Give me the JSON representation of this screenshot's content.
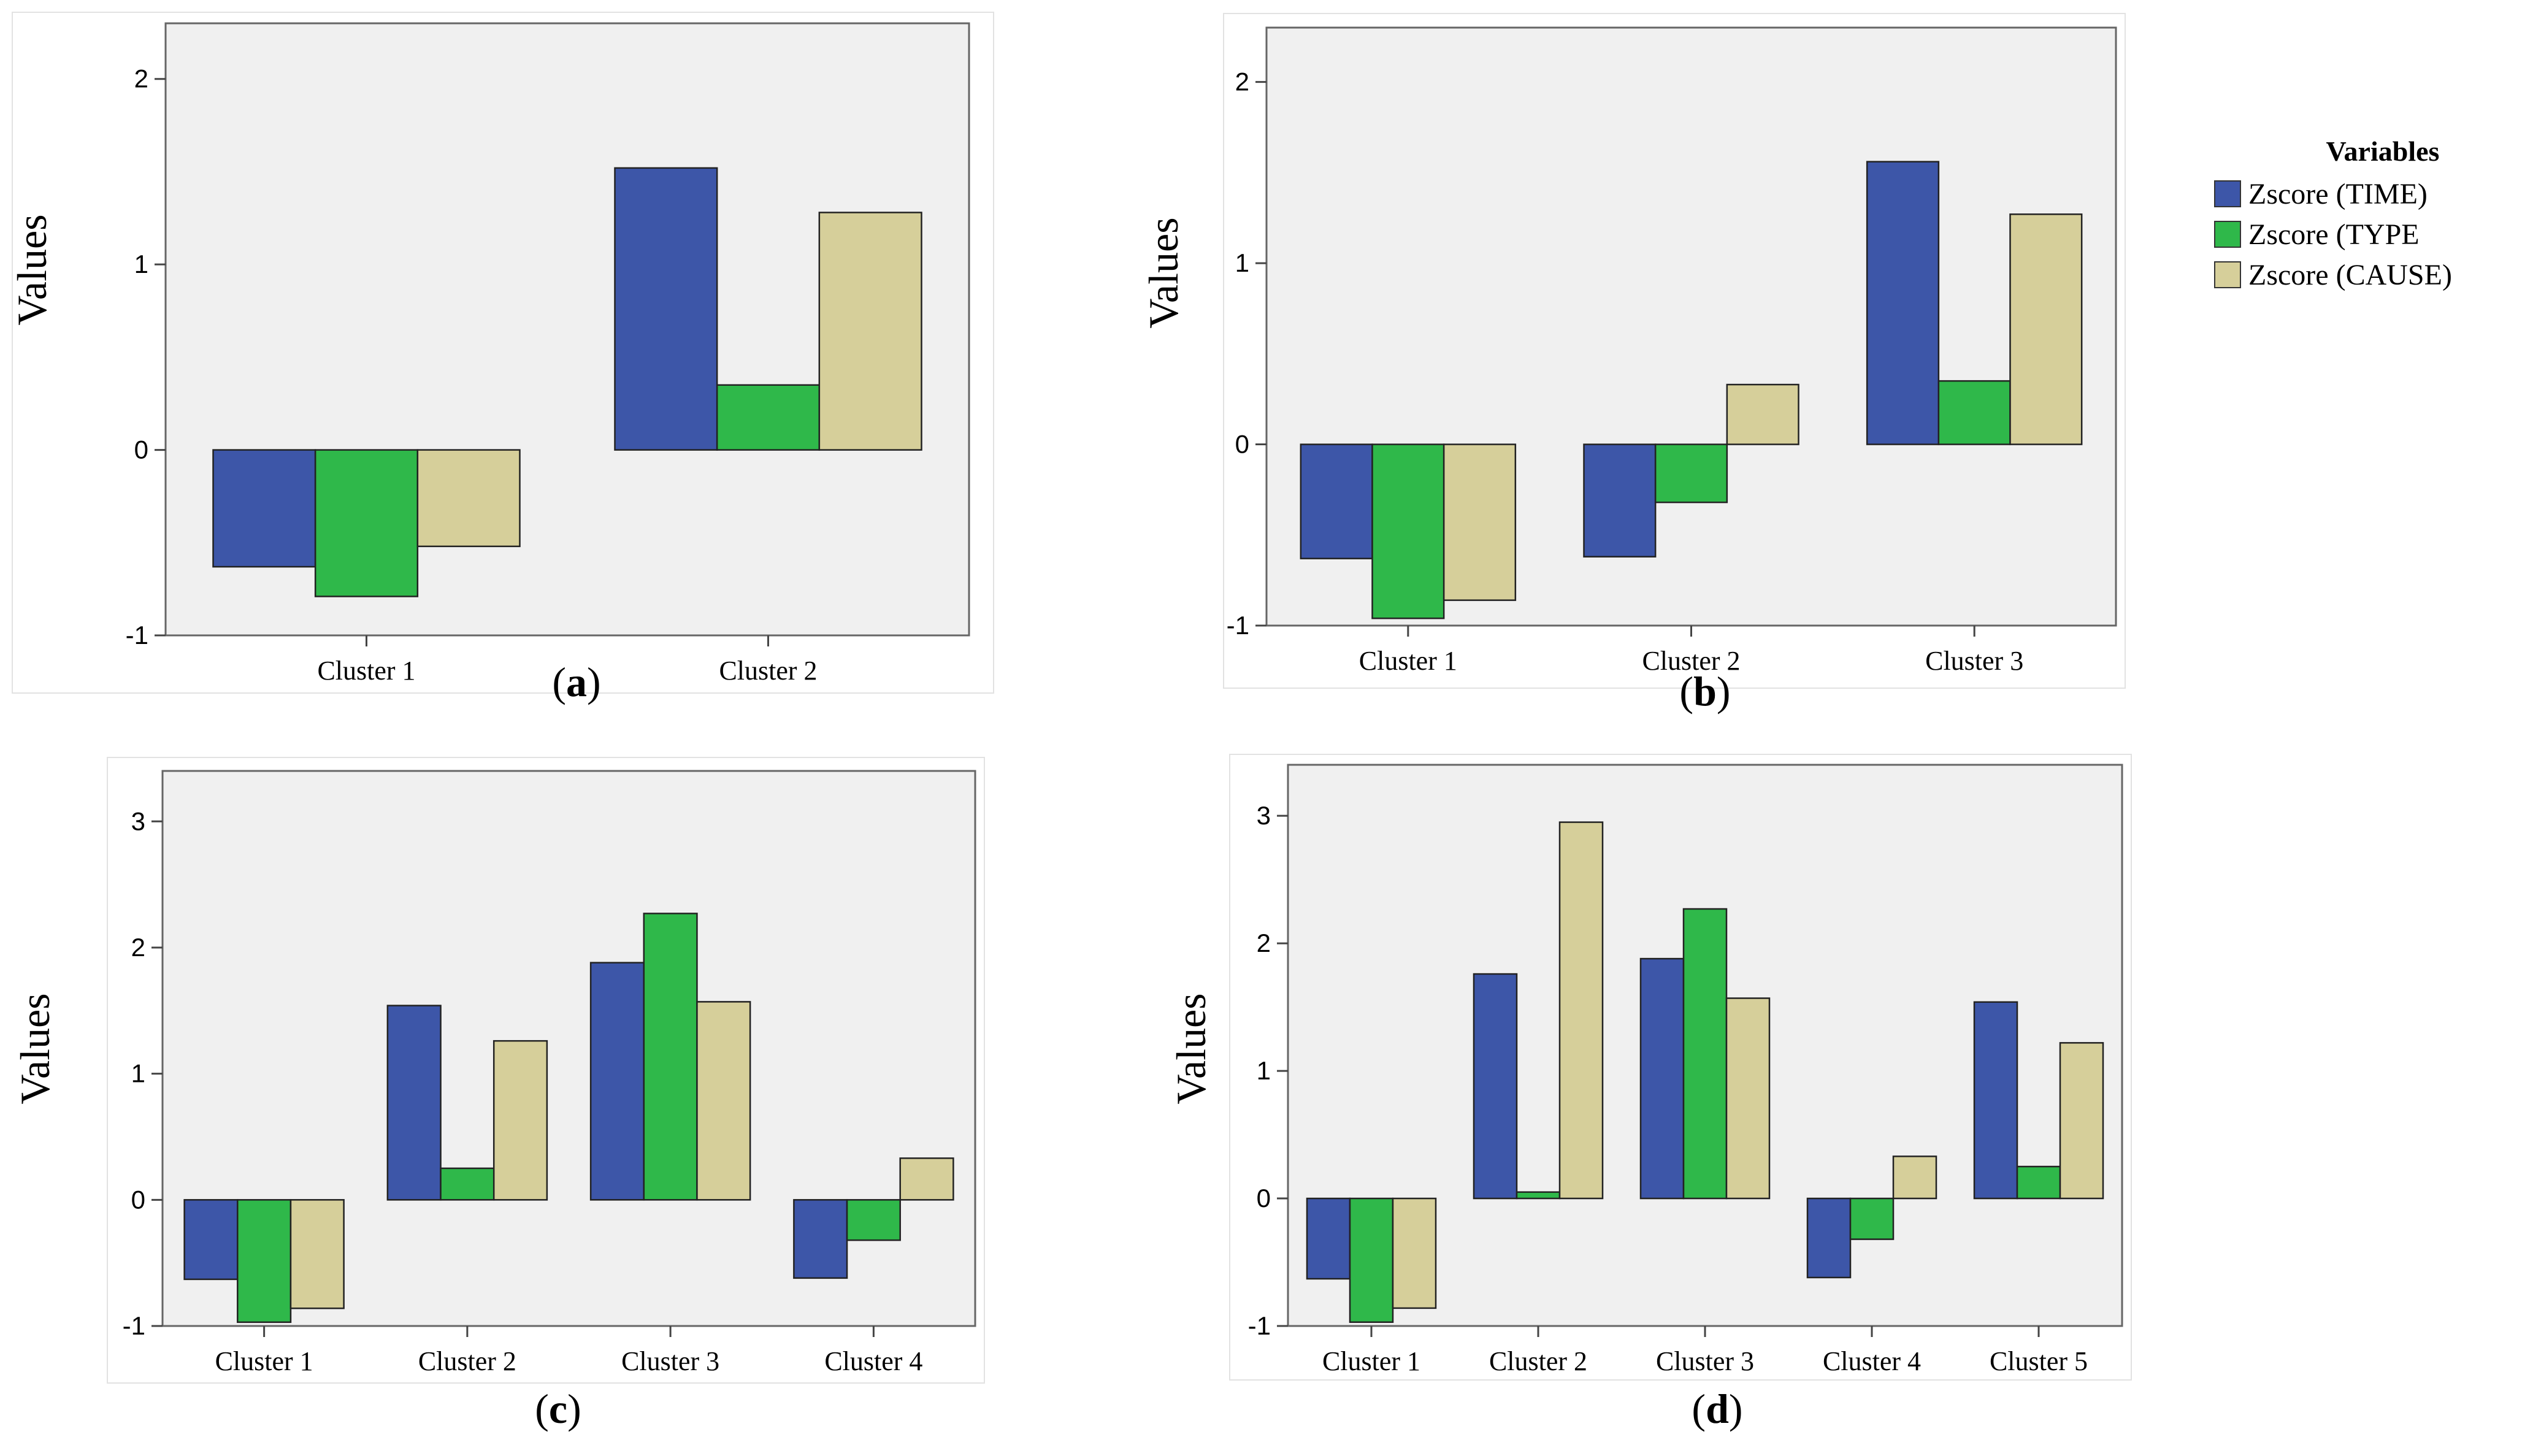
{
  "legend": {
    "title": "Variables",
    "items": [
      {
        "label": "Zscore (TIME)",
        "color": "#3d56a8"
      },
      {
        "label": "Zscore (TYPE",
        "color": "#2fb84a"
      },
      {
        "label": "Zscore (CAUSE)",
        "color": "#d6cf9a"
      }
    ]
  },
  "chart_data": [
    {
      "type": "bar",
      "panel_label": "a",
      "ylabel": "Values",
      "categories": [
        "Cluster 1",
        "Cluster 2"
      ],
      "ylim": [
        -1,
        2.3
      ],
      "yticks": [
        -1,
        0,
        1,
        2
      ],
      "series": [
        {
          "name": "Zscore (TIME)",
          "values": [
            -0.63,
            1.52
          ]
        },
        {
          "name": "Zscore (TYPE",
          "values": [
            -0.79,
            0.35
          ]
        },
        {
          "name": "Zscore (CAUSE)",
          "values": [
            -0.52,
            1.28
          ]
        }
      ]
    },
    {
      "type": "bar",
      "panel_label": "b",
      "ylabel": "Values",
      "categories": [
        "Cluster 1",
        "Cluster 2",
        "Cluster 3"
      ],
      "ylim": [
        -1,
        2.3
      ],
      "yticks": [
        -1,
        0,
        1,
        2
      ],
      "series": [
        {
          "name": "Zscore (TIME)",
          "values": [
            -0.63,
            -0.62,
            1.56
          ]
        },
        {
          "name": "Zscore (TYPE",
          "values": [
            -0.96,
            -0.32,
            0.35
          ]
        },
        {
          "name": "Zscore (CAUSE)",
          "values": [
            -0.86,
            0.33,
            1.27
          ]
        }
      ]
    },
    {
      "type": "bar",
      "panel_label": "c",
      "ylabel": "Values",
      "categories": [
        "Cluster 1",
        "Cluster 2",
        "Cluster 3",
        "Cluster 4"
      ],
      "ylim": [
        -1,
        3.4
      ],
      "yticks": [
        -1,
        0,
        1,
        2,
        3
      ],
      "series": [
        {
          "name": "Zscore (TIME)",
          "values": [
            -0.63,
            1.54,
            1.88,
            -0.62
          ]
        },
        {
          "name": "Zscore (TYPE",
          "values": [
            -0.97,
            0.25,
            2.27,
            -0.32
          ]
        },
        {
          "name": "Zscore (CAUSE)",
          "values": [
            -0.86,
            1.26,
            1.57,
            0.33
          ]
        }
      ]
    },
    {
      "type": "bar",
      "panel_label": "d",
      "ylabel": "Values",
      "categories": [
        "Cluster 1",
        "Cluster 2",
        "Cluster 3",
        "Cluster 4",
        "Cluster 5"
      ],
      "ylim": [
        -1,
        3.4
      ],
      "yticks": [
        -1,
        0,
        1,
        2,
        3
      ],
      "series": [
        {
          "name": "Zscore (TIME)",
          "values": [
            -0.63,
            1.76,
            1.88,
            -0.62,
            1.54
          ]
        },
        {
          "name": "Zscore (TYPE",
          "values": [
            -0.97,
            0.05,
            2.27,
            -0.32,
            0.25
          ]
        },
        {
          "name": "Zscore (CAUSE)",
          "values": [
            -0.86,
            2.95,
            1.57,
            0.33,
            1.22
          ]
        }
      ]
    }
  ]
}
